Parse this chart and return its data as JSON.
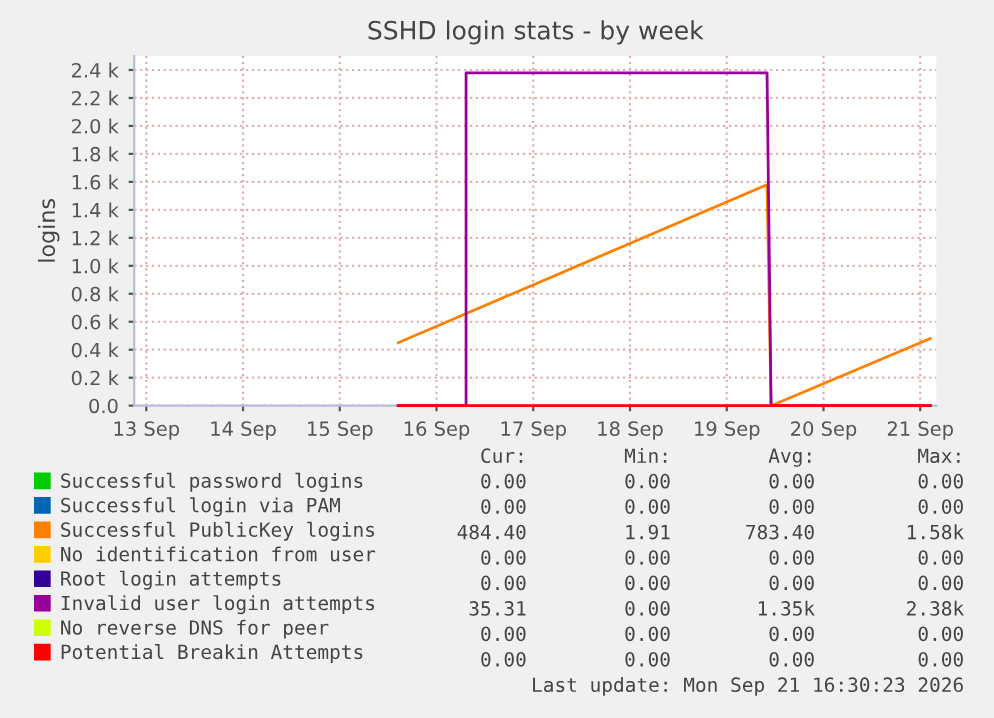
{
  "chart_data": {
    "type": "line",
    "title": "SSHD login stats - by week",
    "ylabel": "logins",
    "xlim": [
      "2026-09-13T09:00",
      "2026-09-21T16:00"
    ],
    "xticks": [
      {
        "value": "2026-09-13T12:00",
        "label": "13 Sep"
      },
      {
        "value": "2026-09-14T12:00",
        "label": "14 Sep"
      },
      {
        "value": "2026-09-15T12:00",
        "label": "15 Sep"
      },
      {
        "value": "2026-09-16T12:00",
        "label": "16 Sep"
      },
      {
        "value": "2026-09-17T12:00",
        "label": "17 Sep"
      },
      {
        "value": "2026-09-18T12:00",
        "label": "18 Sep"
      },
      {
        "value": "2026-09-19T12:00",
        "label": "19 Sep"
      },
      {
        "value": "2026-09-20T12:00",
        "label": "20 Sep"
      },
      {
        "value": "2026-09-21T12:00",
        "label": "21 Sep"
      }
    ],
    "ylim": [
      0,
      2500
    ],
    "yticks": [
      {
        "value": 0,
        "label": "0.0"
      },
      {
        "value": 200,
        "label": "0.2 k"
      },
      {
        "value": 400,
        "label": "0.4 k"
      },
      {
        "value": 600,
        "label": "0.6 k"
      },
      {
        "value": 800,
        "label": "0.8 k"
      },
      {
        "value": 1000,
        "label": "1.0 k"
      },
      {
        "value": 1200,
        "label": "1.2 k"
      },
      {
        "value": 1400,
        "label": "1.4 k"
      },
      {
        "value": 1600,
        "label": "1.6 k"
      },
      {
        "value": 1800,
        "label": "1.8 k"
      },
      {
        "value": 2000,
        "label": "2.0 k"
      },
      {
        "value": 2200,
        "label": "2.2 k"
      },
      {
        "value": 2400,
        "label": "2.4 k"
      }
    ],
    "grid": true,
    "legend": "bottom",
    "series": [
      {
        "name": "Successful password logins",
        "color": "#00cc00"
      },
      {
        "name": "Successful login via PAM",
        "color": "#0066b3"
      },
      {
        "name": "Successful PublicKey logins",
        "color": "#ff8000",
        "x": [
          "2026-09-16T02:30",
          "2026-09-19T22:00",
          "2026-09-19T23:00",
          "2026-09-21T14:30"
        ],
        "values": [
          450,
          1580,
          0,
          480
        ]
      },
      {
        "name": "No identification from user",
        "color": "#ffcc00"
      },
      {
        "name": "Root login attempts",
        "color": "#330099"
      },
      {
        "name": "Invalid user login attempts",
        "color": "#990099",
        "x": [
          "2026-09-16T02:30",
          "2026-09-16T19:20",
          "2026-09-16T19:20",
          "2026-09-19T22:00",
          "2026-09-19T23:00",
          "2026-09-21T14:30"
        ],
        "values": [
          0,
          0,
          2380,
          2380,
          0,
          0
        ]
      },
      {
        "name": "No reverse DNS for peer",
        "color": "#ccff00"
      },
      {
        "name": "Potential Breakin Attempts",
        "color": "#ff0000",
        "x": [
          "2026-09-16T02:30",
          "2026-09-21T14:30"
        ],
        "values": [
          0,
          0
        ]
      }
    ],
    "annotations": [
      "Cur:",
      "Min:",
      "Avg:",
      "Max:",
      "0.00",
      "0.00",
      "0.00",
      "0.00",
      "0.00",
      "0.00",
      "0.00",
      "0.00",
      "484.40",
      "1.91",
      "783.40",
      "1.58k",
      "0.00",
      "0.00",
      "0.00",
      "0.00",
      "0.00",
      "0.00",
      "0.00",
      "0.00",
      "35.31",
      "0.00",
      "1.35k",
      "2.38k",
      "0.00",
      "0.00",
      "0.00",
      "0.00",
      "0.00",
      "0.00",
      "0.00",
      "0.00",
      "Last update: Mon Sep 21 16:30:23 2026"
    ]
  }
}
